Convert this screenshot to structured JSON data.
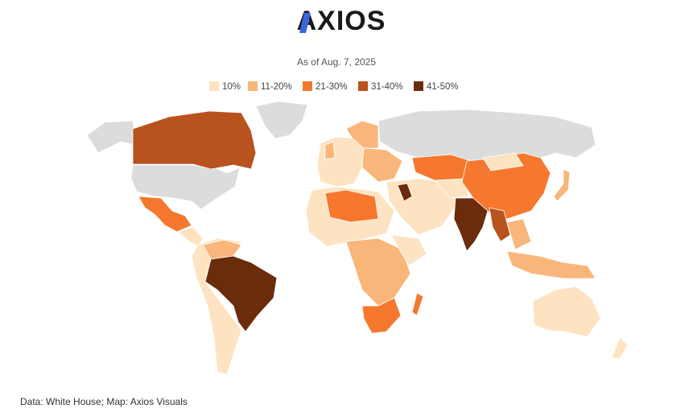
{
  "header": {
    "logo": "AXIOS",
    "subtitle": "As of Aug. 7, 2025"
  },
  "legend": [
    {
      "label": "10%",
      "color": "#fde3c1"
    },
    {
      "label": "11-20%",
      "color": "#f9b67a"
    },
    {
      "label": "21-30%",
      "color": "#f5782e"
    },
    {
      "label": "31-40%",
      "color": "#b8521e"
    },
    {
      "label": "41-50%",
      "color": "#6b2c0c"
    }
  ],
  "no_data_color": "#dcdcdc",
  "footer": {
    "source": "Data: White House; Map: Axios Visuals"
  }
}
